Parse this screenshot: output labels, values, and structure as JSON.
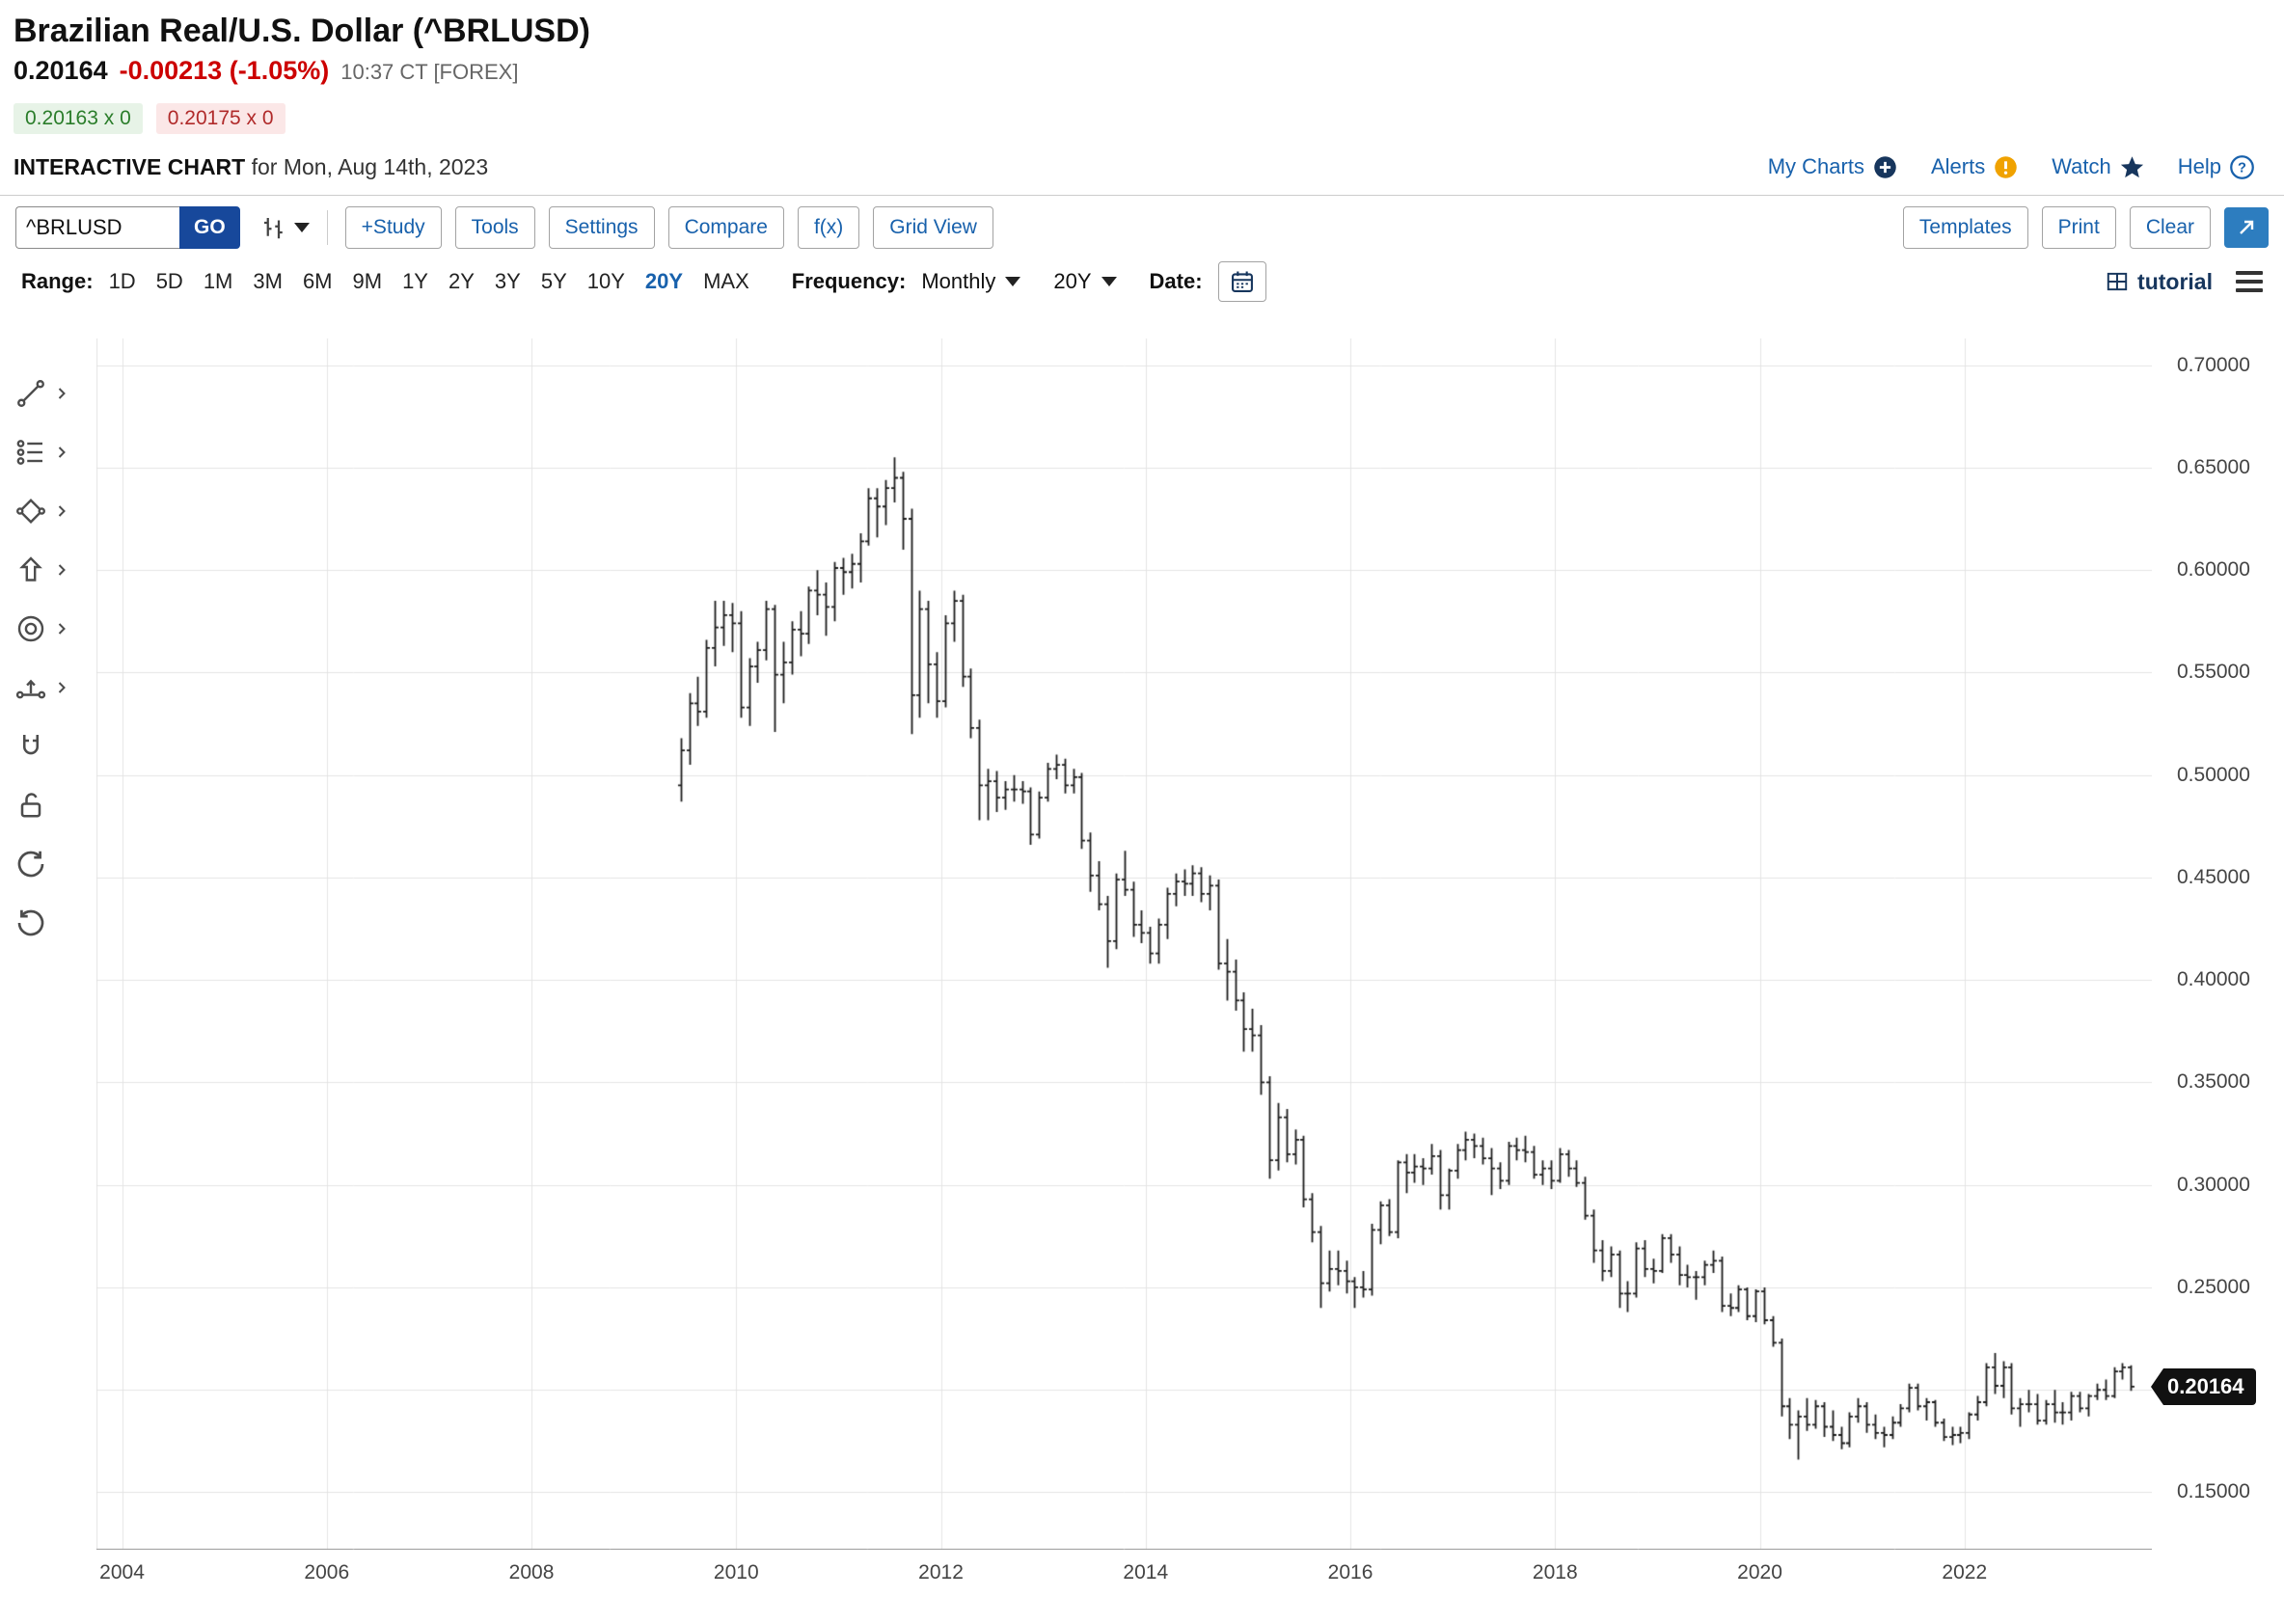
{
  "header": {
    "title": "Brazilian Real/U.S. Dollar (^BRLUSD)",
    "price": "0.20164",
    "change": "-0.00213 (-1.05%)",
    "timestamp": "10:37 CT [FOREX]",
    "bid": "0.20163 x 0",
    "ask": "0.20175 x 0",
    "page_label": "INTERACTIVE CHART",
    "page_sublabel": "for Mon, Aug 14th, 2023",
    "links": [
      {
        "label": "My Charts",
        "icon": "plus-circle-icon"
      },
      {
        "label": "Alerts",
        "icon": "alert-circle-icon"
      },
      {
        "label": "Watch",
        "icon": "star-icon"
      },
      {
        "label": "Help",
        "icon": "question-circle-icon"
      }
    ]
  },
  "toolbar": {
    "symbol_input": "^BRLUSD",
    "go_label": "GO",
    "buttons_left": [
      "+Study",
      "Tools",
      "Settings",
      "Compare",
      "f(x)",
      "Grid View"
    ],
    "buttons_right": [
      "Templates",
      "Print",
      "Clear"
    ]
  },
  "controls": {
    "range_label": "Range:",
    "ranges": [
      "1D",
      "5D",
      "1M",
      "3M",
      "6M",
      "9M",
      "1Y",
      "2Y",
      "3Y",
      "5Y",
      "10Y",
      "20Y",
      "MAX"
    ],
    "selected_range": "20Y",
    "frequency_label": "Frequency:",
    "frequency_value": "Monthly",
    "period_value": "20Y",
    "date_label": "Date:",
    "tutorial_label": "tutorial"
  },
  "drawing_tools": [
    "trendline-tool",
    "annotations-tool",
    "shapes-tool",
    "arrow-tool",
    "circle-marker-tool",
    "measure-tool",
    "magnet-tool",
    "lock-tool",
    "undo",
    "redo"
  ],
  "colors": {
    "link_blue": "#1861ac",
    "navy": "#17365d",
    "go_button": "#17489b",
    "negative_red": "#cc0000",
    "bid_green": "#2a7d2a",
    "ask_red": "#b02a2a",
    "grid": "#e4e4e4",
    "bar": "#1c1c1c",
    "tag_bg": "#111111"
  },
  "chart_data": {
    "type": "bar",
    "style": "ohlc",
    "symbol": "^BRLUSD",
    "frequency": "monthly",
    "start_month": "2009-06",
    "end_month": "2023-08",
    "last_price": 0.20164,
    "price_tag": "0.20164",
    "ylabel": "",
    "xlabel": "",
    "grid": true,
    "y_ticks": [
      "0.70000",
      "0.65000",
      "0.60000",
      "0.55000",
      "0.50000",
      "0.45000",
      "0.40000",
      "0.35000",
      "0.30000",
      "0.25000",
      "0.20000",
      "0.15000"
    ],
    "x_ticks": [
      "2004",
      "2006",
      "2008",
      "2010",
      "2012",
      "2014",
      "2016",
      "2018",
      "2020",
      "2022"
    ],
    "ylim": [
      0.122,
      0.713
    ],
    "xlim_years": [
      2003.75,
      2023.83
    ],
    "bars_format": [
      "open",
      "high",
      "low",
      "close"
    ],
    "bars": [
      [
        0.495,
        0.518,
        0.487,
        0.512
      ],
      [
        0.512,
        0.54,
        0.505,
        0.535
      ],
      [
        0.535,
        0.548,
        0.524,
        0.531
      ],
      [
        0.531,
        0.566,
        0.528,
        0.562
      ],
      [
        0.562,
        0.585,
        0.553,
        0.572
      ],
      [
        0.572,
        0.585,
        0.563,
        0.578
      ],
      [
        0.578,
        0.584,
        0.56,
        0.574
      ],
      [
        0.574,
        0.58,
        0.528,
        0.533
      ],
      [
        0.533,
        0.557,
        0.524,
        0.553
      ],
      [
        0.553,
        0.565,
        0.545,
        0.561
      ],
      [
        0.561,
        0.585,
        0.556,
        0.581
      ],
      [
        0.581,
        0.583,
        0.521,
        0.549
      ],
      [
        0.549,
        0.565,
        0.535,
        0.555
      ],
      [
        0.555,
        0.575,
        0.549,
        0.571
      ],
      [
        0.571,
        0.58,
        0.558,
        0.569
      ],
      [
        0.569,
        0.592,
        0.564,
        0.59
      ],
      [
        0.59,
        0.6,
        0.578,
        0.588
      ],
      [
        0.588,
        0.594,
        0.568,
        0.582
      ],
      [
        0.582,
        0.604,
        0.575,
        0.601
      ],
      [
        0.601,
        0.606,
        0.588,
        0.599
      ],
      [
        0.599,
        0.608,
        0.591,
        0.603
      ],
      [
        0.603,
        0.618,
        0.594,
        0.614
      ],
      [
        0.614,
        0.64,
        0.612,
        0.635
      ],
      [
        0.635,
        0.64,
        0.616,
        0.631
      ],
      [
        0.631,
        0.644,
        0.622,
        0.64
      ],
      [
        0.64,
        0.655,
        0.633,
        0.645
      ],
      [
        0.645,
        0.648,
        0.61,
        0.625
      ],
      [
        0.625,
        0.63,
        0.52,
        0.539
      ],
      [
        0.539,
        0.59,
        0.528,
        0.581
      ],
      [
        0.581,
        0.585,
        0.535,
        0.554
      ],
      [
        0.554,
        0.56,
        0.528,
        0.536
      ],
      [
        0.536,
        0.578,
        0.533,
        0.574
      ],
      [
        0.574,
        0.59,
        0.565,
        0.585
      ],
      [
        0.585,
        0.588,
        0.543,
        0.548
      ],
      [
        0.548,
        0.552,
        0.518,
        0.523
      ],
      [
        0.523,
        0.527,
        0.478,
        0.495
      ],
      [
        0.495,
        0.503,
        0.478,
        0.497
      ],
      [
        0.497,
        0.502,
        0.482,
        0.489
      ],
      [
        0.489,
        0.497,
        0.483,
        0.493
      ],
      [
        0.493,
        0.5,
        0.487,
        0.493
      ],
      [
        0.493,
        0.497,
        0.486,
        0.492
      ],
      [
        0.492,
        0.494,
        0.466,
        0.471
      ],
      [
        0.471,
        0.492,
        0.469,
        0.489
      ],
      [
        0.489,
        0.506,
        0.487,
        0.503
      ],
      [
        0.503,
        0.51,
        0.498,
        0.505
      ],
      [
        0.505,
        0.508,
        0.491,
        0.495
      ],
      [
        0.495,
        0.503,
        0.491,
        0.499
      ],
      [
        0.499,
        0.501,
        0.464,
        0.468
      ],
      [
        0.468,
        0.472,
        0.443,
        0.451
      ],
      [
        0.451,
        0.458,
        0.434,
        0.437
      ],
      [
        0.437,
        0.441,
        0.406,
        0.419
      ],
      [
        0.419,
        0.452,
        0.415,
        0.449
      ],
      [
        0.449,
        0.463,
        0.441,
        0.444
      ],
      [
        0.444,
        0.448,
        0.421,
        0.427
      ],
      [
        0.427,
        0.434,
        0.418,
        0.423
      ],
      [
        0.423,
        0.426,
        0.408,
        0.413
      ],
      [
        0.413,
        0.43,
        0.408,
        0.427
      ],
      [
        0.427,
        0.445,
        0.42,
        0.442
      ],
      [
        0.442,
        0.452,
        0.436,
        0.448
      ],
      [
        0.448,
        0.454,
        0.441,
        0.447
      ],
      [
        0.447,
        0.456,
        0.441,
        0.452
      ],
      [
        0.452,
        0.455,
        0.438,
        0.442
      ],
      [
        0.442,
        0.451,
        0.434,
        0.446
      ],
      [
        0.446,
        0.449,
        0.405,
        0.408
      ],
      [
        0.408,
        0.42,
        0.39,
        0.404
      ],
      [
        0.404,
        0.41,
        0.385,
        0.39
      ],
      [
        0.39,
        0.394,
        0.365,
        0.376
      ],
      [
        0.376,
        0.386,
        0.365,
        0.373
      ],
      [
        0.373,
        0.378,
        0.344,
        0.35
      ],
      [
        0.35,
        0.353,
        0.303,
        0.312
      ],
      [
        0.312,
        0.34,
        0.307,
        0.333
      ],
      [
        0.333,
        0.337,
        0.311,
        0.315
      ],
      [
        0.315,
        0.327,
        0.31,
        0.322
      ],
      [
        0.322,
        0.324,
        0.289,
        0.293
      ],
      [
        0.293,
        0.296,
        0.272,
        0.277
      ],
      [
        0.277,
        0.28,
        0.24,
        0.252
      ],
      [
        0.252,
        0.268,
        0.248,
        0.259
      ],
      [
        0.259,
        0.268,
        0.251,
        0.258
      ],
      [
        0.258,
        0.263,
        0.247,
        0.253
      ],
      [
        0.253,
        0.255,
        0.24,
        0.25
      ],
      [
        0.25,
        0.258,
        0.245,
        0.249
      ],
      [
        0.249,
        0.281,
        0.246,
        0.278
      ],
      [
        0.278,
        0.292,
        0.271,
        0.29
      ],
      [
        0.29,
        0.293,
        0.275,
        0.277
      ],
      [
        0.277,
        0.312,
        0.274,
        0.311
      ],
      [
        0.311,
        0.315,
        0.296,
        0.306
      ],
      [
        0.306,
        0.315,
        0.301,
        0.309
      ],
      [
        0.309,
        0.313,
        0.3,
        0.308
      ],
      [
        0.308,
        0.32,
        0.305,
        0.314
      ],
      [
        0.314,
        0.317,
        0.288,
        0.295
      ],
      [
        0.295,
        0.308,
        0.288,
        0.307
      ],
      [
        0.307,
        0.32,
        0.303,
        0.317
      ],
      [
        0.317,
        0.326,
        0.312,
        0.322
      ],
      [
        0.322,
        0.325,
        0.313,
        0.319
      ],
      [
        0.319,
        0.323,
        0.31,
        0.313
      ],
      [
        0.313,
        0.318,
        0.295,
        0.308
      ],
      [
        0.308,
        0.311,
        0.298,
        0.302
      ],
      [
        0.302,
        0.321,
        0.3,
        0.319
      ],
      [
        0.319,
        0.323,
        0.312,
        0.317
      ],
      [
        0.317,
        0.324,
        0.311,
        0.316
      ],
      [
        0.316,
        0.319,
        0.303,
        0.305
      ],
      [
        0.305,
        0.312,
        0.3,
        0.308
      ],
      [
        0.308,
        0.312,
        0.298,
        0.302
      ],
      [
        0.302,
        0.318,
        0.301,
        0.315
      ],
      [
        0.315,
        0.317,
        0.304,
        0.308
      ],
      [
        0.308,
        0.312,
        0.299,
        0.301
      ],
      [
        0.301,
        0.304,
        0.283,
        0.285
      ],
      [
        0.285,
        0.288,
        0.262,
        0.268
      ],
      [
        0.268,
        0.273,
        0.253,
        0.258
      ],
      [
        0.258,
        0.27,
        0.255,
        0.266
      ],
      [
        0.266,
        0.268,
        0.24,
        0.247
      ],
      [
        0.247,
        0.253,
        0.238,
        0.247
      ],
      [
        0.247,
        0.272,
        0.245,
        0.269
      ],
      [
        0.269,
        0.273,
        0.255,
        0.259
      ],
      [
        0.259,
        0.264,
        0.252,
        0.258
      ],
      [
        0.258,
        0.276,
        0.257,
        0.274
      ],
      [
        0.274,
        0.276,
        0.262,
        0.266
      ],
      [
        0.266,
        0.27,
        0.251,
        0.256
      ],
      [
        0.256,
        0.261,
        0.25,
        0.255
      ],
      [
        0.255,
        0.258,
        0.244,
        0.255
      ],
      [
        0.255,
        0.263,
        0.251,
        0.261
      ],
      [
        0.261,
        0.268,
        0.257,
        0.263
      ],
      [
        0.263,
        0.265,
        0.238,
        0.241
      ],
      [
        0.241,
        0.247,
        0.236,
        0.24
      ],
      [
        0.24,
        0.251,
        0.238,
        0.249
      ],
      [
        0.249,
        0.25,
        0.234,
        0.236
      ],
      [
        0.236,
        0.249,
        0.233,
        0.248
      ],
      [
        0.248,
        0.25,
        0.232,
        0.234
      ],
      [
        0.234,
        0.236,
        0.221,
        0.223
      ],
      [
        0.223,
        0.225,
        0.187,
        0.192
      ],
      [
        0.192,
        0.196,
        0.176,
        0.183
      ],
      [
        0.183,
        0.19,
        0.166,
        0.187
      ],
      [
        0.187,
        0.196,
        0.18,
        0.183
      ],
      [
        0.183,
        0.195,
        0.181,
        0.192
      ],
      [
        0.192,
        0.194,
        0.177,
        0.182
      ],
      [
        0.182,
        0.19,
        0.175,
        0.178
      ],
      [
        0.178,
        0.182,
        0.171,
        0.174
      ],
      [
        0.174,
        0.189,
        0.172,
        0.187
      ],
      [
        0.187,
        0.196,
        0.184,
        0.192
      ],
      [
        0.192,
        0.194,
        0.179,
        0.183
      ],
      [
        0.183,
        0.188,
        0.176,
        0.179
      ],
      [
        0.179,
        0.182,
        0.172,
        0.178
      ],
      [
        0.178,
        0.187,
        0.176,
        0.184
      ],
      [
        0.184,
        0.193,
        0.182,
        0.191
      ],
      [
        0.191,
        0.203,
        0.189,
        0.201
      ],
      [
        0.201,
        0.203,
        0.19,
        0.192
      ],
      [
        0.192,
        0.196,
        0.185,
        0.194
      ],
      [
        0.194,
        0.195,
        0.182,
        0.184
      ],
      [
        0.184,
        0.186,
        0.175,
        0.177
      ],
      [
        0.177,
        0.182,
        0.173,
        0.178
      ],
      [
        0.178,
        0.182,
        0.174,
        0.179
      ],
      [
        0.179,
        0.189,
        0.176,
        0.188
      ],
      [
        0.188,
        0.197,
        0.185,
        0.194
      ],
      [
        0.194,
        0.213,
        0.192,
        0.211
      ],
      [
        0.211,
        0.218,
        0.198,
        0.202
      ],
      [
        0.202,
        0.214,
        0.196,
        0.211
      ],
      [
        0.211,
        0.213,
        0.188,
        0.191
      ],
      [
        0.191,
        0.196,
        0.182,
        0.193
      ],
      [
        0.193,
        0.2,
        0.189,
        0.193
      ],
      [
        0.193,
        0.198,
        0.183,
        0.185
      ],
      [
        0.185,
        0.195,
        0.183,
        0.193
      ],
      [
        0.193,
        0.2,
        0.184,
        0.189
      ],
      [
        0.189,
        0.194,
        0.183,
        0.189
      ],
      [
        0.189,
        0.199,
        0.185,
        0.197
      ],
      [
        0.197,
        0.199,
        0.189,
        0.191
      ],
      [
        0.191,
        0.198,
        0.187,
        0.197
      ],
      [
        0.197,
        0.203,
        0.195,
        0.2
      ],
      [
        0.2,
        0.205,
        0.195,
        0.197
      ],
      [
        0.197,
        0.211,
        0.196,
        0.209
      ],
      [
        0.209,
        0.213,
        0.205,
        0.211
      ],
      [
        0.211,
        0.212,
        0.1995,
        0.2016
      ]
    ]
  }
}
